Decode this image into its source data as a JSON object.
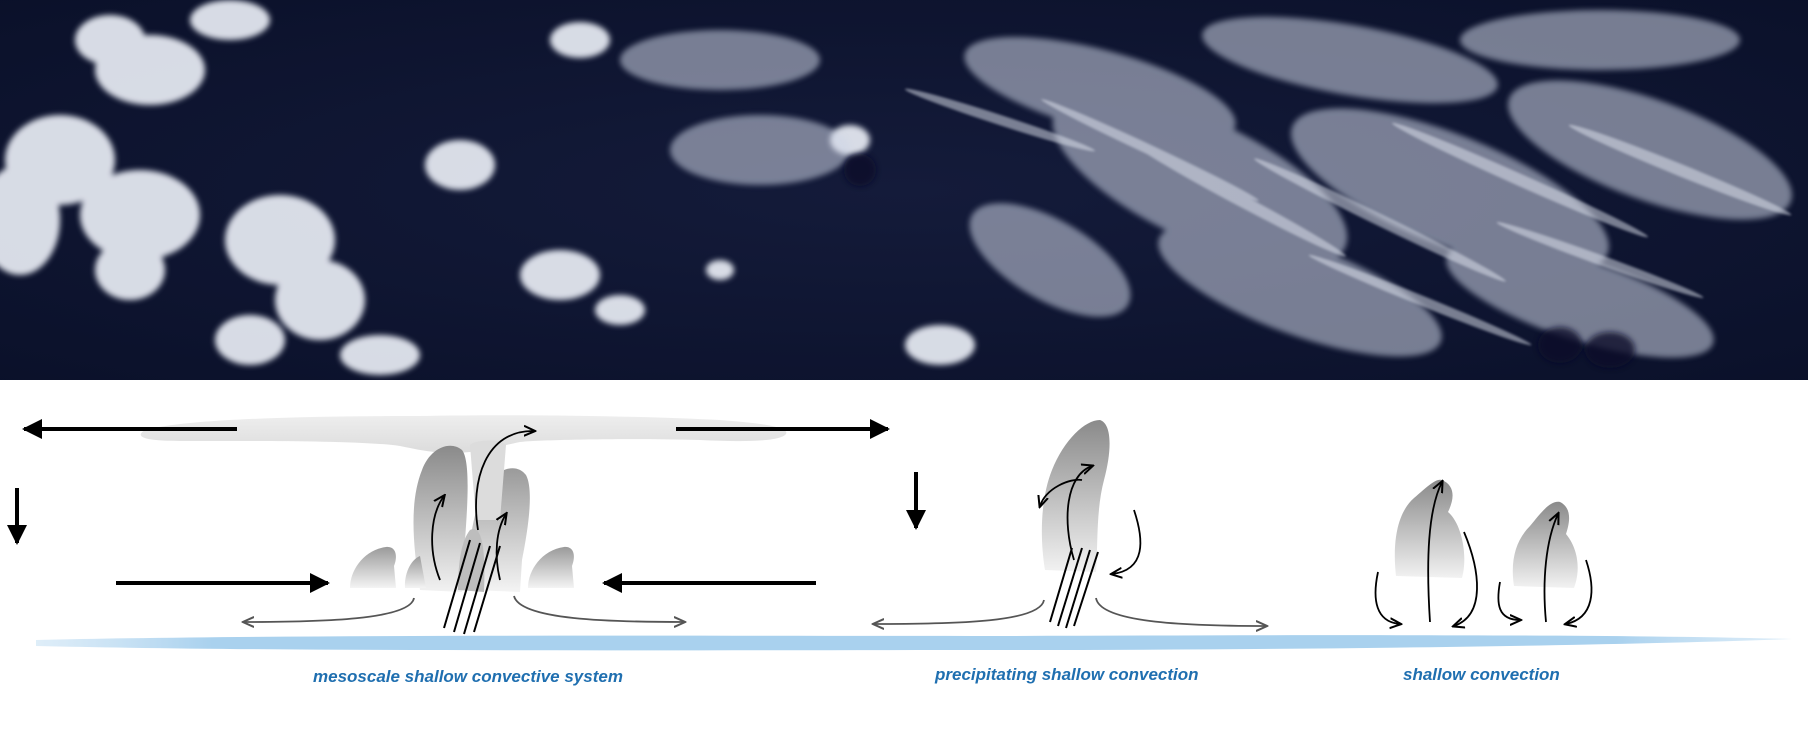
{
  "panels": [
    {
      "id": "mesoscale",
      "label": "mesoscale  shallow convective system"
    },
    {
      "id": "precipitating",
      "label": "precipitating shallow  convection"
    },
    {
      "id": "shallow",
      "label": "shallow convection"
    }
  ],
  "colors": {
    "caption": "#1f6fb0",
    "ocean": "#a9d1ee",
    "sky_dark": "#0d1430",
    "cloud_white": "#eef1f7",
    "anvil": "#e4e4e4",
    "arrow": "#000000",
    "outflow": "#555555"
  },
  "icons": {
    "satellite": "satellite-image",
    "wind": "wind-arrow-icon",
    "subsidence": "subsidence-arrow-icon",
    "rain": "rain-streaks-icon"
  }
}
